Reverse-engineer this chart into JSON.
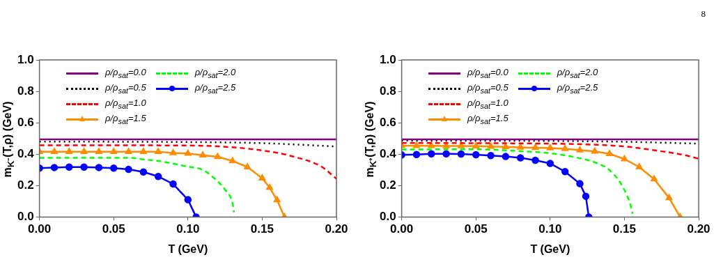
{
  "chart_data": [
    {
      "type": "line",
      "ylabel": "m$_{K⁻}$(T,ρ) (GeV)",
      "xlabel": "T (GeV)",
      "xlim": [
        0,
        0.2
      ],
      "ylim": [
        0,
        1
      ],
      "legend": "top left",
      "grid": false,
      "xticks": [
        {
          "value": 0,
          "label": "0.00"
        },
        {
          "value": 0.05,
          "label": "0.05"
        },
        {
          "value": 0.1,
          "label": "0.10"
        },
        {
          "value": 0.15,
          "label": "0.15"
        },
        {
          "value": 0.2,
          "label": "0.20"
        }
      ],
      "yticks": [
        {
          "value": 0,
          "label": "0.0"
        },
        {
          "value": 0.2,
          "label": "0.2"
        },
        {
          "value": 0.4,
          "label": "0.4"
        },
        {
          "value": 0.6,
          "label": "0.6"
        },
        {
          "value": 0.8,
          "label": "0.8"
        },
        {
          "value": 1,
          "label": "1.0"
        }
      ],
      "series": [
        {
          "name": "ρ/ρ$_{sat}$=0.0",
          "color": "#800080",
          "line_style": "solid",
          "marker": "none",
          "x": [
            0,
            0.2
          ],
          "values": [
            0.494,
            0.494
          ]
        },
        {
          "name": "ρ/ρ$_{sat}$=0.5",
          "color": "#000000",
          "line_style": "dotted",
          "marker": "none",
          "x": [
            0,
            0.1,
            0.15,
            0.2
          ],
          "values": [
            0.48,
            0.477,
            0.47,
            0.449
          ]
        },
        {
          "name": "ρ/ρ$_{sat}$=1.0",
          "color": "#ff0000",
          "line_style": "dashed",
          "marker": "none",
          "x": [
            0,
            0.1,
            0.12,
            0.15,
            0.17,
            0.19,
            0.2
          ],
          "values": [
            0.457,
            0.455,
            0.45,
            0.424,
            0.387,
            0.32,
            0.243
          ]
        },
        {
          "name": "ρ/ρ$_{sat}$=1.5",
          "color": "#ff8c00",
          "line_style": "solid",
          "marker": "triangle",
          "x": [
            0,
            0.01,
            0.02,
            0.03,
            0.04,
            0.05,
            0.06,
            0.07,
            0.08,
            0.09,
            0.1,
            0.11,
            0.12,
            0.13,
            0.14,
            0.15,
            0.155,
            0.16,
            0.165
          ],
          "values": [
            0.416,
            0.416,
            0.416,
            0.416,
            0.416,
            0.416,
            0.416,
            0.416,
            0.415,
            0.408,
            0.404,
            0.393,
            0.383,
            0.357,
            0.318,
            0.247,
            0.187,
            0.108,
            0
          ]
        },
        {
          "name": "ρ/ρ$_{sat}$=2.0",
          "color": "#00ff00",
          "line_style": "dashed",
          "marker": "none",
          "x": [
            0,
            0.06,
            0.07,
            0.08,
            0.09,
            0.1,
            0.11,
            0.12,
            0.125,
            0.13,
            0.131
          ],
          "values": [
            0.377,
            0.377,
            0.367,
            0.357,
            0.34,
            0.32,
            0.3,
            0.227,
            0.174,
            0.088,
            0.03
          ]
        },
        {
          "name": "ρ/ρ$_{sat}$=2.5",
          "color": "#0000ff",
          "line_style": "solid",
          "marker": "circle",
          "x": [
            0,
            0.01,
            0.02,
            0.03,
            0.04,
            0.05,
            0.06,
            0.07,
            0.08,
            0.09,
            0.1,
            0.1055
          ],
          "values": [
            0.311,
            0.315,
            0.318,
            0.318,
            0.315,
            0.311,
            0.303,
            0.287,
            0.258,
            0.21,
            0.11,
            0
          ]
        }
      ]
    },
    {
      "type": "line",
      "ylabel": "m$_{K⁺}$(T,ρ) (GeV)",
      "xlabel": "T (GeV)",
      "xlim": [
        0,
        0.2
      ],
      "ylim": [
        0,
        1
      ],
      "legend": "top left",
      "grid": false,
      "annotations": [
        "8"
      ],
      "xticks": [
        {
          "value": 0,
          "label": "0.00"
        },
        {
          "value": 0.05,
          "label": "0.05"
        },
        {
          "value": 0.1,
          "label": "0.10"
        },
        {
          "value": 0.15,
          "label": "0.15"
        },
        {
          "value": 0.2,
          "label": "0.20"
        }
      ],
      "yticks": [
        {
          "value": 0,
          "label": "0.0"
        },
        {
          "value": 0.2,
          "label": "0.2"
        },
        {
          "value": 0.4,
          "label": "0.4"
        },
        {
          "value": 0.6,
          "label": "0.6"
        },
        {
          "value": 0.8,
          "label": "0.8"
        },
        {
          "value": 1,
          "label": "1.0"
        }
      ],
      "series": [
        {
          "name": "ρ/ρ$_{sat}$=0.0",
          "color": "#800080",
          "line_style": "solid",
          "marker": "none",
          "x": [
            0,
            0.2
          ],
          "values": [
            0.494,
            0.494
          ]
        },
        {
          "name": "ρ/ρ$_{sat}$=0.5",
          "color": "#000000",
          "line_style": "dotted",
          "marker": "none",
          "x": [
            0,
            0.1,
            0.15,
            0.2
          ],
          "values": [
            0.486,
            0.484,
            0.479,
            0.467
          ]
        },
        {
          "name": "ρ/ρ$_{sat}$=1.0",
          "color": "#ff0000",
          "line_style": "dashed",
          "marker": "none",
          "x": [
            0,
            0.1,
            0.15,
            0.17,
            0.19,
            0.2
          ],
          "values": [
            0.471,
            0.467,
            0.449,
            0.425,
            0.395,
            0.371
          ]
        },
        {
          "name": "ρ/ρ$_{sat}$=1.5",
          "color": "#ff8c00",
          "line_style": "solid",
          "marker": "triangle",
          "x": [
            0,
            0.01,
            0.02,
            0.03,
            0.04,
            0.05,
            0.06,
            0.07,
            0.08,
            0.09,
            0.1,
            0.11,
            0.12,
            0.13,
            0.14,
            0.15,
            0.16,
            0.17,
            0.18,
            0.1875
          ],
          "values": [
            0.454,
            0.453,
            0.453,
            0.452,
            0.452,
            0.451,
            0.449,
            0.447,
            0.443,
            0.441,
            0.439,
            0.434,
            0.425,
            0.418,
            0.402,
            0.369,
            0.318,
            0.241,
            0.122,
            0
          ]
        },
        {
          "name": "ρ/ρ$_{sat}$=2.0",
          "color": "#00ff00",
          "line_style": "dashed",
          "marker": "none",
          "x": [
            0,
            0.05,
            0.08,
            0.1,
            0.12,
            0.13,
            0.14,
            0.15,
            0.155,
            0.1555
          ],
          "values": [
            0.43,
            0.431,
            0.419,
            0.406,
            0.374,
            0.348,
            0.298,
            0.172,
            0.045,
            0.02
          ]
        },
        {
          "name": "ρ/ρ$_{sat}$=2.5",
          "color": "#0000ff",
          "line_style": "solid",
          "marker": "circle",
          "x": [
            0,
            0.01,
            0.02,
            0.03,
            0.04,
            0.05,
            0.06,
            0.07,
            0.08,
            0.09,
            0.1,
            0.11,
            0.12,
            0.124,
            0.126
          ],
          "values": [
            0.395,
            0.398,
            0.402,
            0.402,
            0.401,
            0.397,
            0.391,
            0.385,
            0.377,
            0.361,
            0.341,
            0.289,
            0.212,
            0.132,
            0
          ]
        }
      ]
    }
  ]
}
